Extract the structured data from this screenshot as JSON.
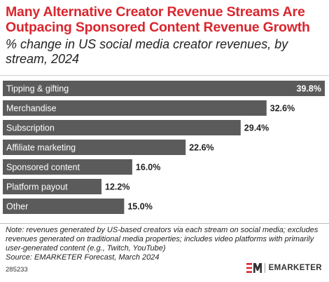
{
  "header": {
    "title": "Many Alternative Creator Revenue Streams Are Outpacing Sponsored Content Revenue Growth",
    "subtitle": "% change in US social media creator revenues, by stream, 2024"
  },
  "chart_data": {
    "type": "bar",
    "orientation": "horizontal",
    "categories": [
      "Tipping & gifting",
      "Merchandise",
      "Subscription",
      "Affiliate marketing",
      "Sponsored content",
      "Platform payout",
      "Other"
    ],
    "values": [
      39.8,
      32.6,
      29.4,
      22.6,
      16.0,
      12.2,
      15.0
    ],
    "value_labels": [
      "39.8%",
      "32.6%",
      "29.4%",
      "22.6%",
      "16.0%",
      "12.2%",
      "15.0%"
    ],
    "xlim": [
      0,
      39.8
    ],
    "bar_color": "#5b5b5b",
    "title": "Many Alternative Creator Revenue Streams Are Outpacing Sponsored Content Revenue Growth",
    "xlabel": "",
    "ylabel": ""
  },
  "footer": {
    "note": "Note: revenues generated by US-based creators via each stream on social media; excludes revenues generated on traditional media properties; includes video platforms with primarily user-generated content (e.g., Twitch, YouTube)",
    "source": "Source: EMARKETER Forecast, March 2024",
    "chart_id": "285233",
    "brand": "EMARKETER"
  },
  "colors": {
    "title": "#d9262e",
    "bar": "#5b5b5b",
    "brand_red": "#d9262e"
  }
}
